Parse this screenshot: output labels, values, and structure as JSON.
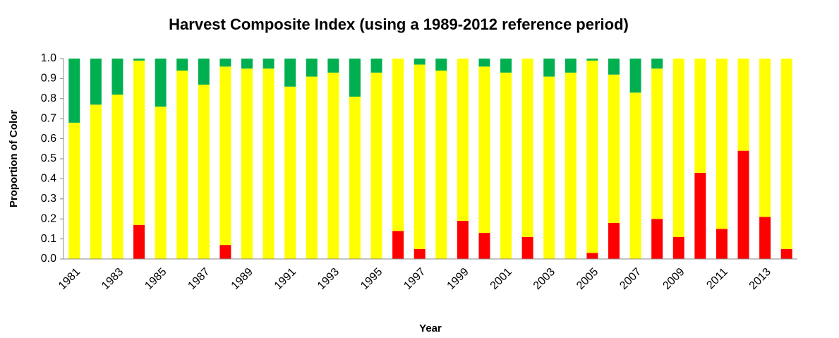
{
  "chart_data": {
    "type": "stacked_bar",
    "title": "Harvest Composite Index (using a 1989-2012 reference period)",
    "xlabel": "Year",
    "ylabel": "Proportion of Color",
    "categories": [
      "1981",
      null,
      "1983",
      null,
      "1985",
      null,
      "1987",
      null,
      "1989",
      null,
      "1991",
      null,
      "1993",
      null,
      "1995",
      null,
      "1997",
      null,
      "1999",
      null,
      "2001",
      null,
      "2003",
      null,
      "2005",
      null,
      "2007",
      null,
      "2009",
      null,
      "2011",
      null,
      "2013",
      null
    ],
    "series": [
      {
        "color": "#ff0000",
        "values": [
          0,
          0,
          0,
          0.17,
          0,
          0,
          0,
          0.07,
          0,
          0,
          0,
          0,
          0,
          0,
          0,
          0.14,
          0.05,
          0,
          0.19,
          0.13,
          0,
          0.11,
          0,
          0,
          0.03,
          0.18,
          0,
          0.2,
          0.11,
          0.43,
          0.15,
          0.54,
          0.21,
          0.05
        ]
      },
      {
        "color": "#ffff00",
        "values": [
          0.68,
          0.77,
          0.82,
          0.82,
          0.76,
          0.94,
          0.87,
          0.89,
          0.95,
          0.95,
          0.86,
          0.91,
          0.93,
          0.81,
          0.93,
          0.86,
          0.92,
          0.94,
          0.81,
          0.83,
          0.93,
          0.89,
          0.91,
          0.93,
          0.96,
          0.74,
          0.83,
          0.75,
          0.89,
          0.57,
          0.85,
          0.46,
          0.79,
          0.95
        ]
      },
      {
        "color": "#00b050",
        "values": [
          0.32,
          0.23,
          0.18,
          0.01,
          0.24,
          0.06,
          0.13,
          0.04,
          0.05,
          0.05,
          0.14,
          0.09,
          0.07,
          0.19,
          0.07,
          0,
          0.03,
          0.06,
          0,
          0.04,
          0.07,
          0,
          0.09,
          0.07,
          0.01,
          0.08,
          0.17,
          0.05,
          0,
          0,
          0,
          0,
          0,
          0
        ]
      }
    ],
    "ylim": [
      0,
      1
    ],
    "yticks": [
      {
        "value": 0,
        "label": "0.0"
      },
      0.1,
      0.2,
      0.3,
      0.4,
      0.5,
      0.6,
      0.7,
      0.8,
      0.9,
      {
        "value": 1,
        "label": "1.0"
      }
    ],
    "grid": false
  }
}
